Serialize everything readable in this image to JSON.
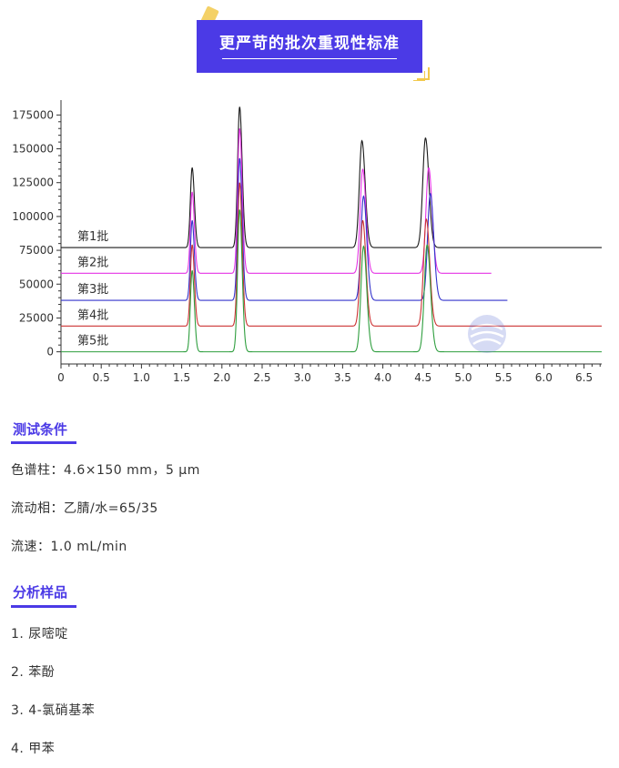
{
  "banner": {
    "title": "更严苛的批次重现性标准"
  },
  "chart_data": {
    "type": "line",
    "title": "",
    "xlabel": "",
    "ylabel": "",
    "xlim": [
      0,
      6.72
    ],
    "ylim": [
      -9000,
      186000
    ],
    "x_ticks": [
      "0",
      "0.5",
      "1.0",
      "1.5",
      "2.0",
      "2.5",
      "3.0",
      "3.5",
      "4.0",
      "4.5",
      "5.0",
      "5.5",
      "6.0",
      "6.5"
    ],
    "y_ticks": [
      "0",
      "25000",
      "50000",
      "75000",
      "100000",
      "125000",
      "150000",
      "175000"
    ],
    "peaks": [
      {
        "retention_time": 1.63,
        "sigma": 0.022,
        "series_rt_shift": [
          0,
          0,
          0,
          0,
          0
        ]
      },
      {
        "retention_time": 2.22,
        "sigma": 0.025,
        "series_rt_shift": [
          0,
          0,
          0,
          0,
          0
        ]
      },
      {
        "retention_time": 3.74,
        "sigma": 0.032,
        "series_rt_shift": [
          0,
          0.01,
          0.02,
          0.01,
          0.02
        ]
      },
      {
        "retention_time": 4.53,
        "sigma": 0.034,
        "series_rt_shift": [
          0,
          0.04,
          0.06,
          0.01,
          0.02
        ]
      }
    ],
    "series": [
      {
        "name": "第1批",
        "color": "#1a1a1a",
        "baseline": 77000,
        "x_end": 6.72,
        "apex": [
          136000,
          181000,
          156000,
          158000
        ]
      },
      {
        "name": "第2批",
        "color": "#e533e5",
        "baseline": 58000,
        "x_end": 5.35,
        "apex": [
          118000,
          165000,
          135000,
          136000
        ]
      },
      {
        "name": "第3批",
        "color": "#3333cc",
        "baseline": 38000,
        "x_end": 5.55,
        "apex": [
          97000,
          143000,
          115000,
          117000
        ]
      },
      {
        "name": "第4批",
        "color": "#cc3333",
        "baseline": 19000,
        "x_end": 6.72,
        "apex": [
          79000,
          125000,
          97000,
          98000
        ]
      },
      {
        "name": "第5批",
        "color": "#2e9e3e",
        "baseline": 0,
        "x_end": 6.72,
        "apex": [
          60000,
          105000,
          78000,
          79000
        ]
      }
    ]
  },
  "conditions": {
    "title": "测试条件",
    "lines": [
      "色谱柱：4.6×150 mm，5 μm",
      "流动相：乙腈/水=65/35",
      "流速：1.0 mL/min"
    ]
  },
  "samples": {
    "title": "分析样品",
    "items": [
      "1. 尿嘧啶",
      "2. 苯酚",
      "3. 4-氯硝基苯",
      "4. 甲苯"
    ]
  },
  "colors": {
    "accent": "#4b3ae6",
    "deco": "#f2c94c"
  }
}
